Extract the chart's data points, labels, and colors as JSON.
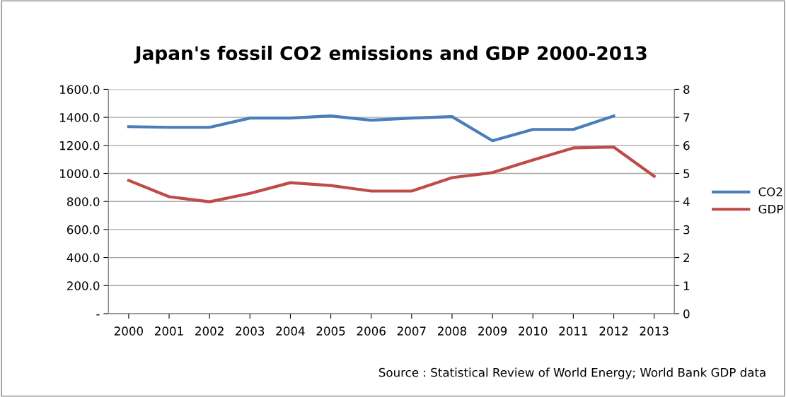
{
  "chart_data": {
    "type": "line",
    "title": "Japan's fossil CO2 emissions and GDP 2000-2013",
    "categories": [
      "2000",
      "2001",
      "2002",
      "2003",
      "2004",
      "2005",
      "2006",
      "2007",
      "2008",
      "2009",
      "2010",
      "2011",
      "2012",
      "2013"
    ],
    "series": [
      {
        "name": "CO2",
        "color": "#4a7ebb",
        "values": [
          1334,
          1329,
          1329,
          1395,
          1395,
          1410,
          1380,
          1395,
          1405,
          1233,
          1314,
          1314,
          1410,
          null
        ]
      },
      {
        "name": "GDP",
        "color": "#be4b48",
        "axis": "y2",
        "values": [
          4.75,
          4.17,
          3.99,
          4.29,
          4.67,
          4.57,
          4.37,
          4.37,
          4.85,
          5.03,
          5.48,
          5.91,
          5.94,
          4.9
        ]
      }
    ],
    "ylim": [
      0,
      1600
    ],
    "yticks": [
      {
        "value": 0,
        "label": "-"
      },
      {
        "value": 200,
        "label": "200.0"
      },
      {
        "value": 400,
        "label": "400.0"
      },
      {
        "value": 600,
        "label": "600.0"
      },
      {
        "value": 800,
        "label": "800.0"
      },
      {
        "value": 1000,
        "label": "1000.0"
      },
      {
        "value": 1200,
        "label": "1200.0"
      },
      {
        "value": 1400,
        "label": "1400.0"
      },
      {
        "value": 1600,
        "label": "1600.0"
      }
    ],
    "y2lim": [
      0,
      8
    ],
    "y2ticks": [
      0,
      1,
      2,
      3,
      4,
      5,
      6,
      7,
      8
    ],
    "grid": "y",
    "legend": "right",
    "marker": "none",
    "line_style": "solid",
    "annotations": [
      "Source : Statistical Review of World Energy; World Bank GDP data"
    ]
  }
}
